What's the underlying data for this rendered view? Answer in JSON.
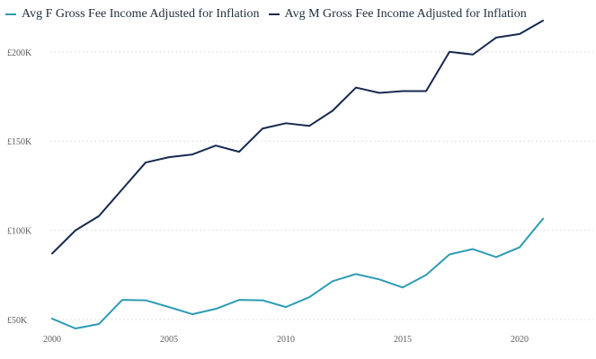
{
  "chart_data": {
    "type": "line",
    "title": "",
    "xlabel": "",
    "ylabel": "",
    "legend_position": "top-left",
    "grid": true,
    "x": [
      2000,
      2001,
      2002,
      2003,
      2004,
      2005,
      2006,
      2007,
      2008,
      2009,
      2010,
      2011,
      2012,
      2013,
      2014,
      2015,
      2016,
      2017,
      2018,
      2019,
      2020,
      2021
    ],
    "xlim": [
      2000,
      2021
    ],
    "ylim": [
      45000,
      220000
    ],
    "x_ticks": [
      2000,
      2005,
      2010,
      2015,
      2020
    ],
    "x_tick_labels": [
      "2000",
      "2005",
      "2010",
      "2015",
      "2020"
    ],
    "y_ticks": [
      50000,
      100000,
      150000,
      200000
    ],
    "y_tick_labels": [
      "£50K",
      "£100K",
      "£150K",
      "£200K"
    ],
    "series": [
      {
        "name": "Avg F Gross Fee Income Adjusted for Inflation",
        "color": "#2d9bb3",
        "values": [
          50500,
          45000,
          47500,
          61000,
          60800,
          57000,
          53000,
          56000,
          61000,
          60800,
          57000,
          62500,
          71500,
          75500,
          72500,
          68000,
          75000,
          86500,
          89500,
          85000,
          90500,
          106500
        ]
      },
      {
        "name": "Avg M Gross Fee Income Adjusted for Inflation",
        "color": "#16294f",
        "values": [
          87000,
          100000,
          108000,
          123000,
          138000,
          141000,
          142500,
          147500,
          144000,
          157000,
          160000,
          158500,
          167000,
          180000,
          177000,
          178000,
          178000,
          200000,
          198500,
          208000,
          210000,
          217500
        ]
      }
    ]
  }
}
